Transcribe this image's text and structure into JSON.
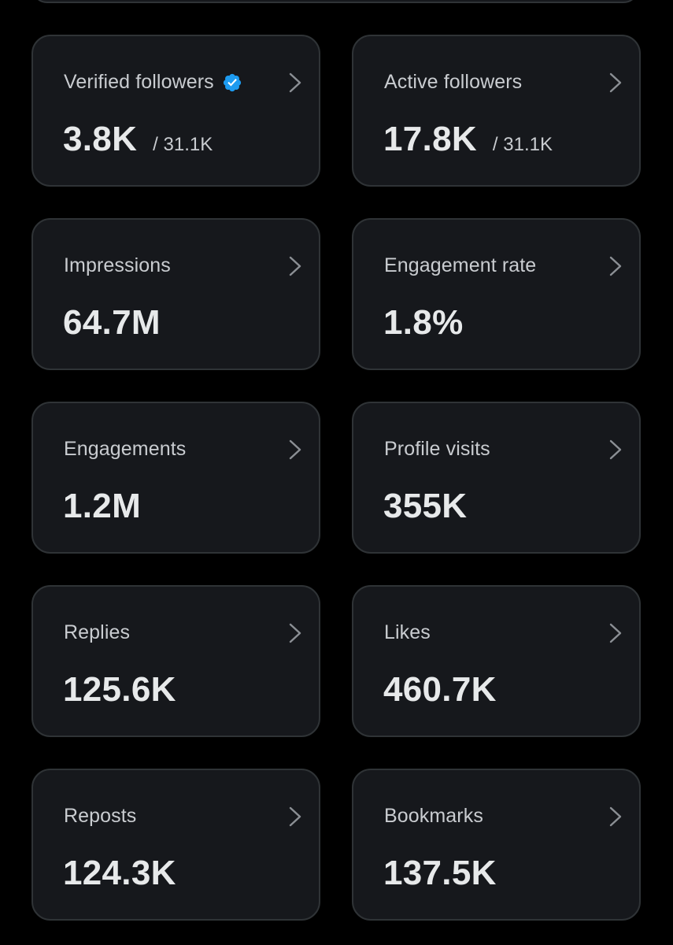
{
  "colors": {
    "background": "#000000",
    "card_bg": "#16181c",
    "card_border": "#2f3336",
    "verified_badge": "#1d9bf0"
  },
  "cards": [
    {
      "label": "Verified followers",
      "value": "3.8K",
      "total": "/ 31.1K",
      "verified_icon": "verified-badge-icon"
    },
    {
      "label": "Active followers",
      "value": "17.8K",
      "total": "/ 31.1K"
    },
    {
      "label": "Impressions",
      "value": "64.7M"
    },
    {
      "label": "Engagement rate",
      "value": "1.8%"
    },
    {
      "label": "Engagements",
      "value": "1.2M"
    },
    {
      "label": "Profile visits",
      "value": "355K"
    },
    {
      "label": "Replies",
      "value": "125.6K"
    },
    {
      "label": "Likes",
      "value": "460.7K"
    },
    {
      "label": "Reposts",
      "value": "124.3K"
    },
    {
      "label": "Bookmarks",
      "value": "137.5K"
    }
  ]
}
